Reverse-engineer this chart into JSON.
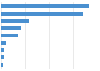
{
  "values": [
    237,
    222,
    75,
    54,
    46,
    13,
    9,
    8,
    5
  ],
  "bar_color": "#4a90d0",
  "background_color": "#ffffff",
  "grid_color": "#e0e0e0",
  "xlim": [
    0,
    260
  ],
  "bar_height": 0.55
}
